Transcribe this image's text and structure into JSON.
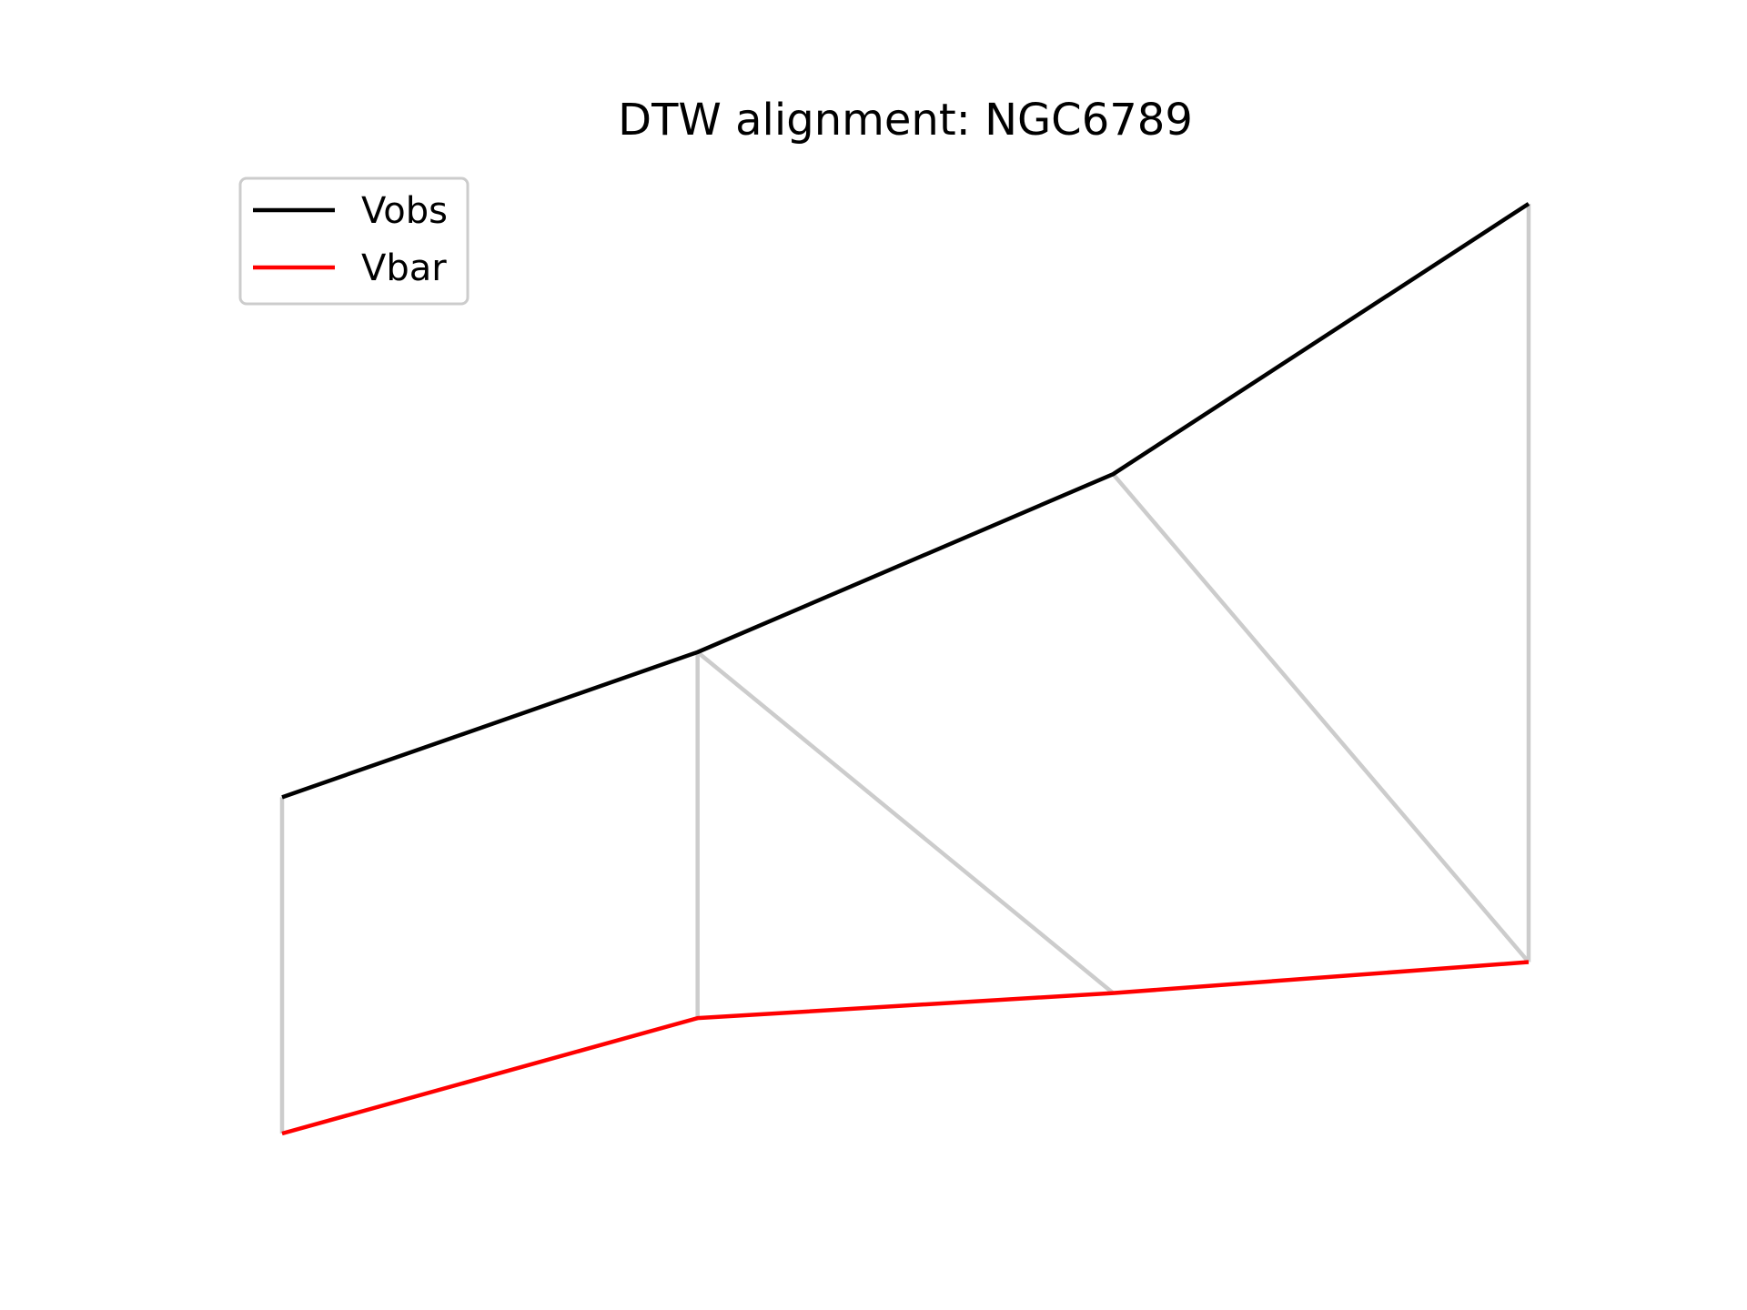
{
  "chart_data": {
    "type": "line",
    "title": "DTW alignment: NGC6789",
    "xlabel": "",
    "ylabel": "",
    "axes_visible": false,
    "grid": false,
    "legend_position": "upper-left",
    "x": [
      0,
      1,
      2,
      3
    ],
    "series": [
      {
        "name": "Vobs",
        "color": "#000000",
        "values": [
          0.0,
          0.22,
          0.49,
          0.9
        ]
      },
      {
        "name": "Vbar",
        "color": "#ff0000",
        "values": [
          -0.51,
          -0.335,
          -0.297,
          -0.25
        ]
      }
    ],
    "alignment_pairs": [
      [
        0,
        0
      ],
      [
        1,
        1
      ],
      [
        1,
        2
      ],
      [
        2,
        3
      ],
      [
        3,
        3
      ]
    ],
    "alignment_color": "#cccccc"
  }
}
